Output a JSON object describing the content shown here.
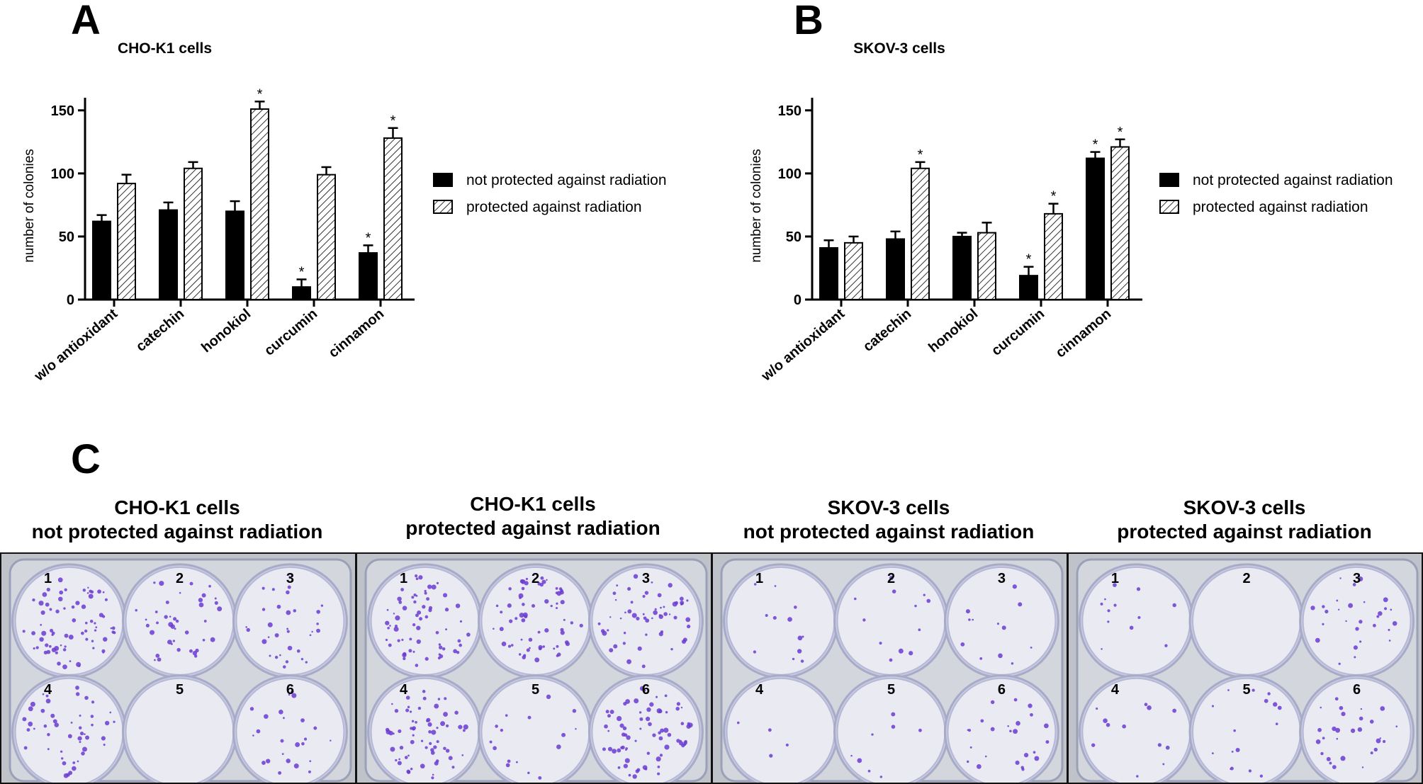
{
  "panels": {
    "a_letter": "A",
    "b_letter": "B",
    "c_letter": "C"
  },
  "chart_data": [
    {
      "type": "bar",
      "title": "CHO-K1 cells",
      "xlabel": "",
      "ylabel": "number of colonies",
      "ylim": [
        0,
        160
      ],
      "yticks": [
        0,
        50,
        100,
        150
      ],
      "categories": [
        "w/o antioxidant",
        "catechin",
        "honokiol",
        "curcumin",
        "cinnamon"
      ],
      "series": [
        {
          "name": "not protected against radiation",
          "fill": "solid",
          "values": [
            62,
            71,
            70,
            10,
            37
          ],
          "errors": [
            5,
            6,
            8,
            6,
            6
          ],
          "significant": [
            false,
            false,
            false,
            true,
            true
          ]
        },
        {
          "name": "protected against radiation",
          "fill": "hatched",
          "values": [
            92,
            104,
            151,
            99,
            128
          ],
          "errors": [
            7,
            5,
            6,
            6,
            8
          ],
          "significant": [
            false,
            false,
            true,
            false,
            true
          ]
        }
      ],
      "significance_marker": "*",
      "legend": "right",
      "grid": false
    },
    {
      "type": "bar",
      "title": "SKOV-3 cells",
      "xlabel": "",
      "ylabel": "number of colonies",
      "ylim": [
        0,
        160
      ],
      "yticks": [
        0,
        50,
        100,
        150
      ],
      "categories": [
        "w/o antioxidant",
        "catechin",
        "honokiol",
        "curcumin",
        "cinnamon"
      ],
      "series": [
        {
          "name": "not protected against radiation",
          "fill": "solid",
          "values": [
            41,
            48,
            50,
            19,
            112
          ],
          "errors": [
            6,
            6,
            3,
            7,
            5
          ],
          "significant": [
            false,
            false,
            false,
            true,
            true
          ]
        },
        {
          "name": "protected against radiation",
          "fill": "hatched",
          "values": [
            45,
            104,
            53,
            68,
            121
          ],
          "errors": [
            5,
            5,
            8,
            8,
            6
          ],
          "significant": [
            false,
            true,
            false,
            true,
            true
          ]
        }
      ],
      "significance_marker": "*",
      "legend": "right",
      "grid": false
    }
  ],
  "photos": {
    "well_labels": [
      "1",
      "2",
      "3",
      "4",
      "5",
      "6"
    ],
    "plates": [
      {
        "title_line1": "CHO-K1 cells",
        "title_line2": "not protected against radiation",
        "colony_density": [
          0.9,
          0.5,
          0.4,
          0.6,
          0.0,
          0.3
        ]
      },
      {
        "title_line1": "CHO-K1 cells",
        "title_line2": "protected against radiation",
        "colony_density": [
          0.8,
          0.8,
          0.7,
          0.8,
          0.2,
          0.9
        ]
      },
      {
        "title_line1": "SKOV-3 cells",
        "title_line2": "not protected against radiation",
        "colony_density": [
          0.15,
          0.15,
          0.15,
          0.05,
          0.1,
          0.3
        ]
      },
      {
        "title_line1": "SKOV-3 cells",
        "title_line2": "protected against radiation",
        "colony_density": [
          0.15,
          0.0,
          0.35,
          0.15,
          0.2,
          0.35
        ]
      }
    ],
    "colors": {
      "stain": "#6a3bd1",
      "plate": "#d3d6dc",
      "background": "#ffffff"
    }
  }
}
